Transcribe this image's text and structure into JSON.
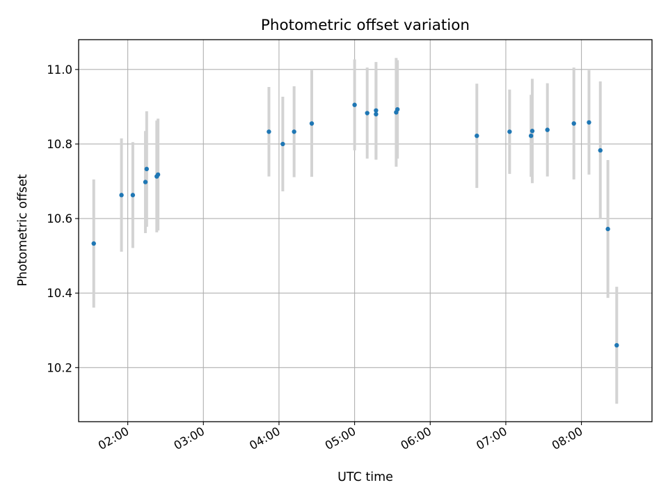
{
  "chart_data": {
    "type": "scatter",
    "title": "Photometric offset variation",
    "xlabel": "UTC time",
    "ylabel": "Photometric offset",
    "x_ticks": [
      "02:00",
      "03:00",
      "04:00",
      "05:00",
      "06:00",
      "07:00",
      "08:00"
    ],
    "y_ticks": [
      "10.2",
      "10.4",
      "10.6",
      "10.8",
      "11.0"
    ],
    "xlim": [
      "01:21",
      "08:56"
    ],
    "ylim": [
      10.055,
      11.08
    ],
    "grid": true,
    "legend": "none",
    "colors": {
      "points": "#1f77b4",
      "errorbars": "#d3d3d3",
      "grid": "#b0b0b0",
      "axes": "#000000"
    },
    "points": [
      {
        "x": "01:33",
        "y": 10.533,
        "err": 0.172
      },
      {
        "x": "01:55",
        "y": 10.663,
        "err": 0.152
      },
      {
        "x": "02:04",
        "y": 10.663,
        "err": 0.142
      },
      {
        "x": "02:14",
        "y": 10.698,
        "err": 0.137
      },
      {
        "x": "02:15",
        "y": 10.733,
        "err": 0.155
      },
      {
        "x": "02:23",
        "y": 10.713,
        "err": 0.15
      },
      {
        "x": "02:24",
        "y": 10.718,
        "err": 0.15
      },
      {
        "x": "03:52",
        "y": 10.833,
        "err": 0.12
      },
      {
        "x": "04:03",
        "y": 10.8,
        "err": 0.127
      },
      {
        "x": "04:12",
        "y": 10.833,
        "err": 0.122
      },
      {
        "x": "04:26",
        "y": 10.855,
        "err": 0.143
      },
      {
        "x": "05:00",
        "y": 10.905,
        "err": 0.122
      },
      {
        "x": "05:10",
        "y": 10.883,
        "err": 0.122
      },
      {
        "x": "05:17",
        "y": 10.89,
        "err": 0.13
      },
      {
        "x": "05:17",
        "y": 10.88,
        "err": 0.122
      },
      {
        "x": "05:33",
        "y": 10.885,
        "err": 0.146
      },
      {
        "x": "05:34",
        "y": 10.893,
        "err": 0.132
      },
      {
        "x": "06:37",
        "y": 10.822,
        "err": 0.14
      },
      {
        "x": "07:03",
        "y": 10.833,
        "err": 0.113
      },
      {
        "x": "07:20",
        "y": 10.822,
        "err": 0.11
      },
      {
        "x": "07:21",
        "y": 10.835,
        "err": 0.14
      },
      {
        "x": "07:33",
        "y": 10.838,
        "err": 0.125
      },
      {
        "x": "07:54",
        "y": 10.855,
        "err": 0.15
      },
      {
        "x": "08:06",
        "y": 10.858,
        "err": 0.14
      },
      {
        "x": "08:15",
        "y": 10.783,
        "err": 0.185
      },
      {
        "x": "08:21",
        "y": 10.572,
        "err": 0.185
      },
      {
        "x": "08:28",
        "y": 10.26,
        "err": 0.157
      }
    ]
  }
}
